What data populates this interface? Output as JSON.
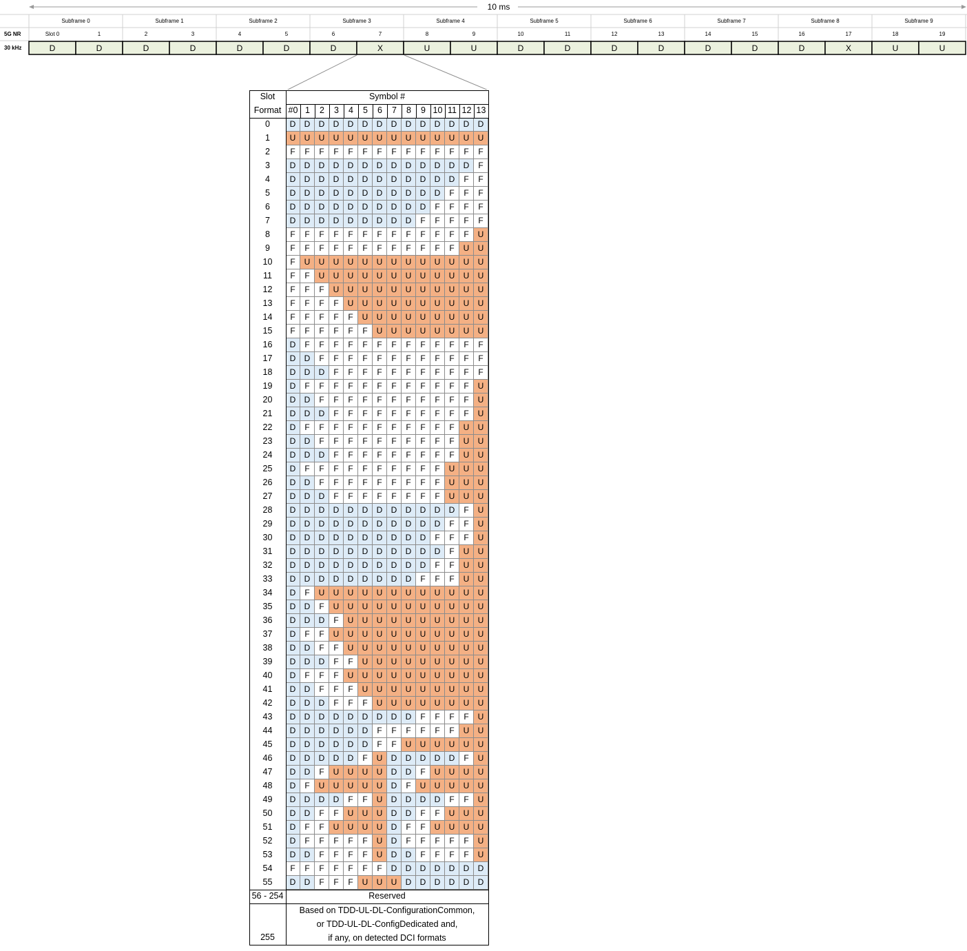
{
  "frame": {
    "duration_label": "10 ms",
    "subframes": [
      "Subframe 0",
      "Subframe 1",
      "Subframe 2",
      "Subframe 3",
      "Subframe 4",
      "Subframe 5",
      "Subframe 6",
      "Subframe 7",
      "Subframe 8",
      "Subframe 9"
    ],
    "row_label_nr": "5G NR",
    "row_label_scs": "30 kHz",
    "slot_labels": [
      "Slot 0",
      "1",
      "2",
      "3",
      "4",
      "5",
      "6",
      "7",
      "8",
      "9",
      "10",
      "11",
      "12",
      "13",
      "14",
      "15",
      "16",
      "17",
      "18",
      "19"
    ],
    "slot_types": [
      "D",
      "D",
      "D",
      "D",
      "D",
      "D",
      "D",
      "X",
      "U",
      "U",
      "D",
      "D",
      "D",
      "D",
      "D",
      "D",
      "D",
      "X",
      "U",
      "U"
    ],
    "colors": {
      "slot_fill": "#ebf1de",
      "slot_border": "#000000",
      "D": "#ddebf7",
      "U": "#f4b084",
      "F": "#ffffff"
    }
  },
  "table": {
    "header_col1_line1": "Slot",
    "header_col1_line2": "Format",
    "header_symbols": "Symbol #",
    "symbol_labels": [
      "#0",
      "1",
      "2",
      "3",
      "4",
      "5",
      "6",
      "7",
      "8",
      "9",
      "10",
      "11",
      "12",
      "13"
    ],
    "formats": [
      {
        "id": "0",
        "symbols": "DDDDDDDDDDDDDD"
      },
      {
        "id": "1",
        "symbols": "UUUUUUUUUUUUUU"
      },
      {
        "id": "2",
        "symbols": "FFFFFFFFFFFFFF"
      },
      {
        "id": "3",
        "symbols": "DDDDDDDDDDDDDF"
      },
      {
        "id": "4",
        "symbols": "DDDDDDDDDDDDFF"
      },
      {
        "id": "5",
        "symbols": "DDDDDDDDDDDFFF"
      },
      {
        "id": "6",
        "symbols": "DDDDDDDDDDFFFF"
      },
      {
        "id": "7",
        "symbols": "DDDDDDDDDFFFFF"
      },
      {
        "id": "8",
        "symbols": "FFFFFFFFFFFFFU"
      },
      {
        "id": "9",
        "symbols": "FFFFFFFFFFFFUU"
      },
      {
        "id": "10",
        "symbols": "FUUUUUUUUUUUUU"
      },
      {
        "id": "11",
        "symbols": "FFUUUUUUUUUUUU"
      },
      {
        "id": "12",
        "symbols": "FFFUUUUUUUUUUU"
      },
      {
        "id": "13",
        "symbols": "FFFFUUUUUUUUUU"
      },
      {
        "id": "14",
        "symbols": "FFFFFUUUUUUUUU"
      },
      {
        "id": "15",
        "symbols": "FFFFFFUUUUUUUU"
      },
      {
        "id": "16",
        "symbols": "DFFFFFFFFFFFFF"
      },
      {
        "id": "17",
        "symbols": "DDFFFFFFFFFFFF"
      },
      {
        "id": "18",
        "symbols": "DDDFFFFFFFFFFF"
      },
      {
        "id": "19",
        "symbols": "DFFFFFFFFFFFFU"
      },
      {
        "id": "20",
        "symbols": "DDFFFFFFFFFFFU"
      },
      {
        "id": "21",
        "symbols": "DDDFFFFFFFFFFU"
      },
      {
        "id": "22",
        "symbols": "DFFFFFFFFFFFUU"
      },
      {
        "id": "23",
        "symbols": "DDFFFFFFFFFFUU"
      },
      {
        "id": "24",
        "symbols": "DDDFFFFFFFFFUU"
      },
      {
        "id": "25",
        "symbols": "DFFFFFFFFFFUUU"
      },
      {
        "id": "26",
        "symbols": "DDFFFFFFFFFUUU"
      },
      {
        "id": "27",
        "symbols": "DDDFFFFFFFFUUU"
      },
      {
        "id": "28",
        "symbols": "DDDDDDDDDDDDFU"
      },
      {
        "id": "29",
        "symbols": "DDDDDDDDDDDFFU"
      },
      {
        "id": "30",
        "symbols": "DDDDDDDDDDFFFU"
      },
      {
        "id": "31",
        "symbols": "DDDDDDDDDDDFUU"
      },
      {
        "id": "32",
        "symbols": "DDDDDDDDDDFFUU"
      },
      {
        "id": "33",
        "symbols": "DDDDDDDDDFFFUU"
      },
      {
        "id": "34",
        "symbols": "DFUUUUUUUUUUUU"
      },
      {
        "id": "35",
        "symbols": "DDFUUUUUUUUUUU"
      },
      {
        "id": "36",
        "symbols": "DDDFUUUUUUUUUU"
      },
      {
        "id": "37",
        "symbols": "DFFUUUUUUUUUUU"
      },
      {
        "id": "38",
        "symbols": "DDFFUUUUUUUUUU"
      },
      {
        "id": "39",
        "symbols": "DDDFFUUUUUUUUU"
      },
      {
        "id": "40",
        "symbols": "DFFFUUUUUUUUUU"
      },
      {
        "id": "41",
        "symbols": "DDFFFUUUUUUUUU"
      },
      {
        "id": "42",
        "symbols": "DDDFFFUUUUUUUU"
      },
      {
        "id": "43",
        "symbols": "DDDDDDDDDFFFFU"
      },
      {
        "id": "44",
        "symbols": "DDDDDDFFFFFFUU"
      },
      {
        "id": "45",
        "symbols": "DDDDDDFFUUUUUU"
      },
      {
        "id": "46",
        "symbols": "DDDDDFUDDDDDFU"
      },
      {
        "id": "47",
        "symbols": "DDFUUUUDDFUUUU"
      },
      {
        "id": "48",
        "symbols": "DFUUUUUDFUUUUU"
      },
      {
        "id": "49",
        "symbols": "DDDDFFUDDDDFFU"
      },
      {
        "id": "50",
        "symbols": "DDFFUUUDDFFUUU"
      },
      {
        "id": "51",
        "symbols": "DFFUUUUDFFUUUU"
      },
      {
        "id": "52",
        "symbols": "DFFFFFUDFFFFFU"
      },
      {
        "id": "53",
        "symbols": "DDFFFFUDDFFFFU"
      },
      {
        "id": "54",
        "symbols": "FFFFFFFDDDDDDD"
      },
      {
        "id": "55",
        "symbols": "DDFFFUUUDDDDDD"
      }
    ],
    "reserved_range": "56 - 254",
    "reserved_label": "Reserved",
    "last_format": "255",
    "last_note_lines": [
      "Based on TDD-UL-DL-ConfigurationCommon,",
      "or TDD-UL-DL-ConfigDedicated and,",
      "if any, on detected DCI formats"
    ]
  }
}
